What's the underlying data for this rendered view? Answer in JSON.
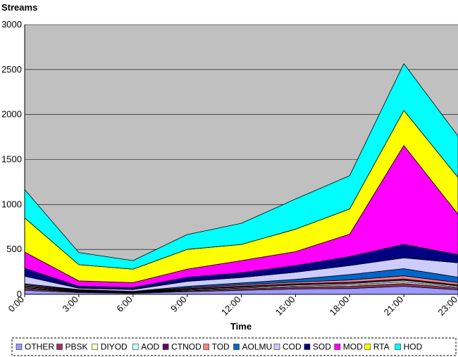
{
  "chart_data": {
    "type": "area",
    "stacked": true,
    "ylabel": "Streams",
    "xlabel": "Time",
    "x": [
      "0:00",
      "3:00",
      "6:00",
      "9:00",
      "12:00",
      "15:00",
      "18:00",
      "21:00",
      "23:00"
    ],
    "y_ticks": [
      "0",
      "500",
      "1000",
      "1500",
      "2000",
      "2500",
      "3000"
    ],
    "ylim": [
      0,
      3000
    ],
    "grid": "horizontal",
    "plot_background": "#c0c0c0",
    "legend_position": "bottom",
    "series": [
      {
        "name": "OTHER",
        "color": "#9999ff",
        "values": [
          45,
          20,
          12,
          30,
          45,
          60,
          65,
          90,
          50
        ]
      },
      {
        "name": "PBSK",
        "color": "#993366",
        "values": [
          20,
          8,
          5,
          10,
          15,
          20,
          25,
          30,
          20
        ]
      },
      {
        "name": "DIYOD",
        "color": "#ffffcc",
        "values": [
          10,
          5,
          3,
          8,
          10,
          12,
          15,
          18,
          12
        ]
      },
      {
        "name": "AOD",
        "color": "#ccffff",
        "values": [
          10,
          5,
          3,
          8,
          10,
          12,
          15,
          18,
          12
        ]
      },
      {
        "name": "CTNOD",
        "color": "#660066",
        "values": [
          10,
          5,
          3,
          8,
          12,
          14,
          15,
          15,
          12
        ]
      },
      {
        "name": "TOD",
        "color": "#ff8080",
        "values": [
          12,
          5,
          4,
          10,
          15,
          18,
          25,
          35,
          25
        ]
      },
      {
        "name": "AOLMU",
        "color": "#0066cc",
        "values": [
          10,
          5,
          3,
          15,
          20,
          30,
          60,
          80,
          60
        ]
      },
      {
        "name": "COD",
        "color": "#ccccff",
        "values": [
          85,
          15,
          20,
          55,
          60,
          80,
          100,
          120,
          160
        ]
      },
      {
        "name": "SOD",
        "color": "#000080",
        "values": [
          88,
          22,
          22,
          46,
          53,
          74,
          100,
          150,
          90
        ]
      },
      {
        "name": "MOD",
        "color": "#ff00ff",
        "values": [
          180,
          60,
          55,
          90,
          135,
          155,
          250,
          1100,
          450
        ]
      },
      {
        "name": "RTA",
        "color": "#ffff00",
        "values": [
          380,
          180,
          150,
          220,
          180,
          250,
          280,
          390,
          410
        ]
      },
      {
        "name": "HOD",
        "color": "#00ffff",
        "values": [
          315,
          135,
          95,
          165,
          235,
          335,
          370,
          520,
          460
        ]
      }
    ]
  }
}
